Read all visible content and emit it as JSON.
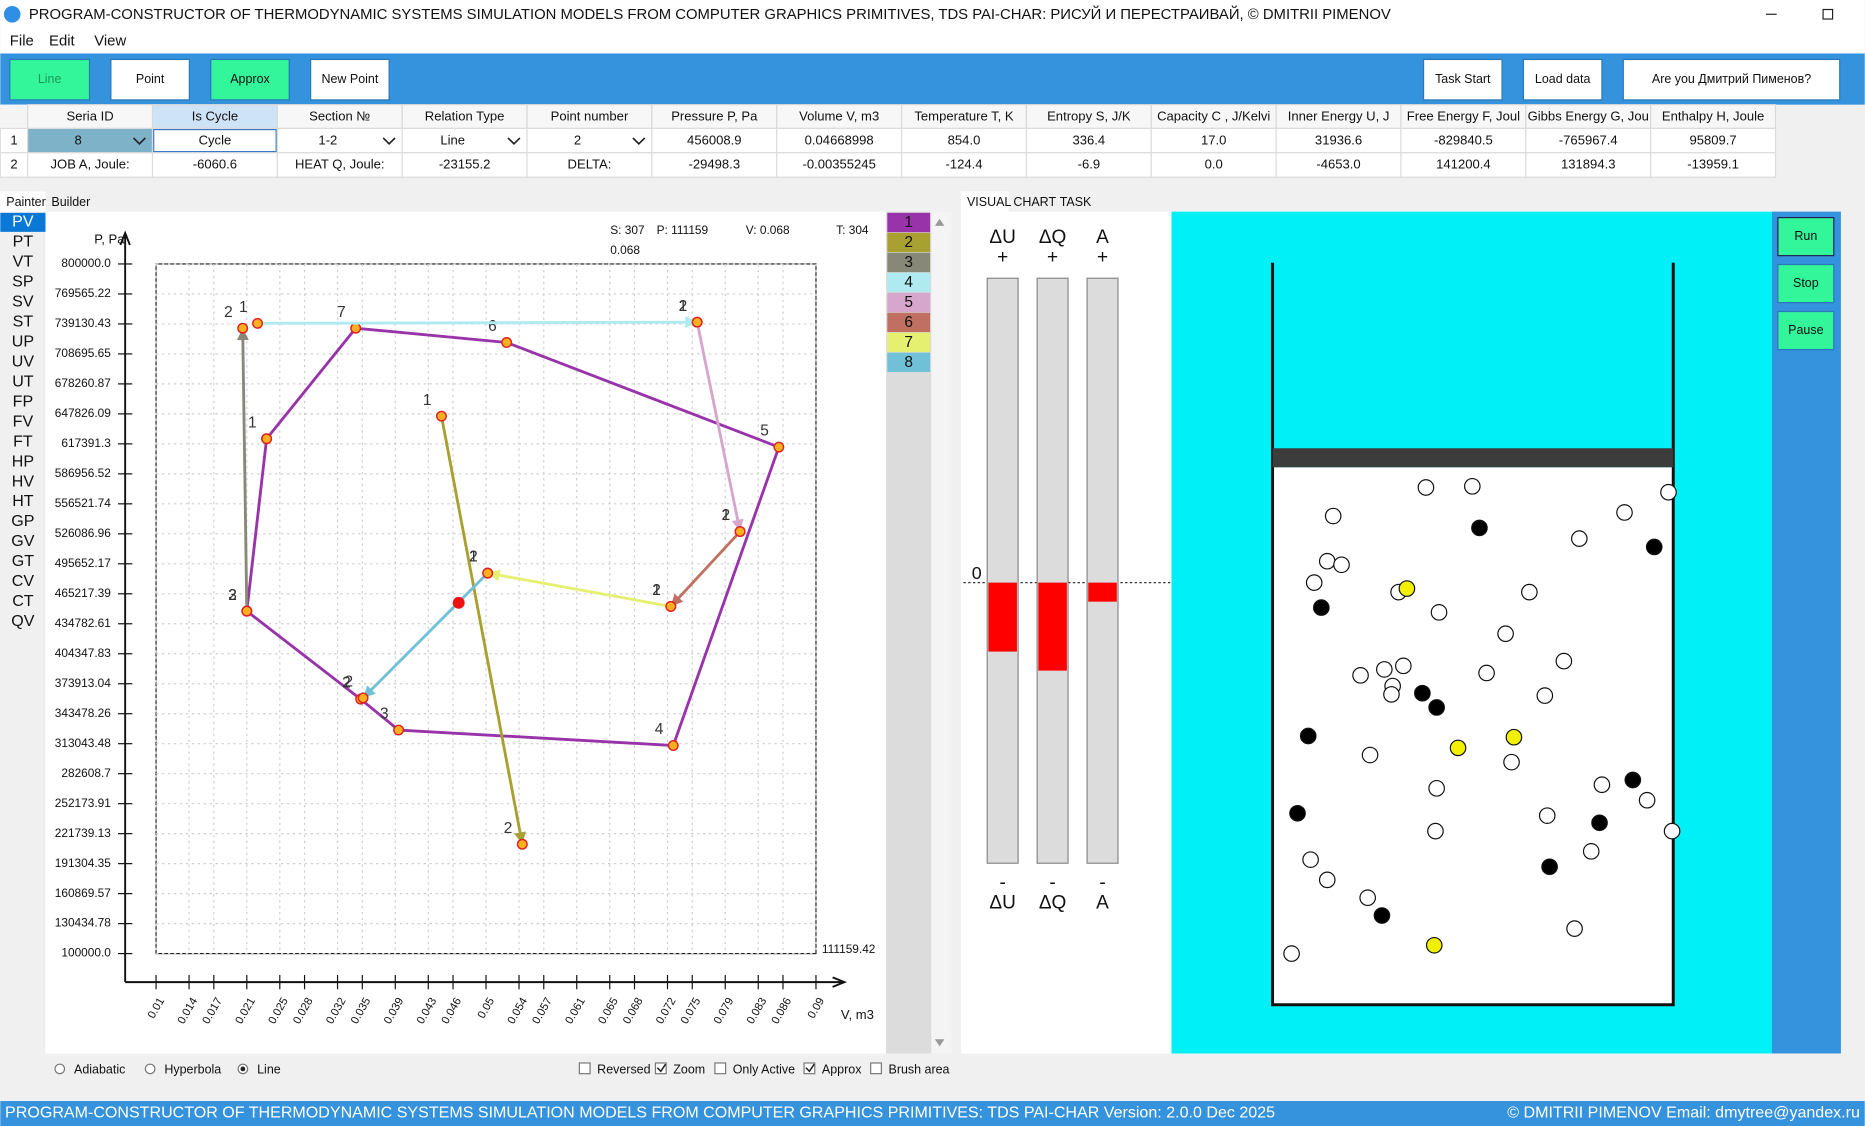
{
  "title_bar": {
    "title": "PROGRAM-CONSTRUCTOR OF THERMODYNAMIC SYSTEMS SIMULATION MODELS FROM COMPUTER GRAPHICS PRIMITIVES, TDS PAI-CHAR: РИСУЙ И ПЕРЕСТРАИВАЙ, © DMITRII PIMENOV"
  },
  "menu": [
    "File",
    "Edit",
    "View"
  ],
  "toolbar": {
    "left": [
      "Line",
      "Point",
      "Approx",
      "New Point"
    ],
    "right": [
      "Task Start",
      "Load data",
      "Are you Дмитрий Пименов?"
    ]
  },
  "table": {
    "headers": [
      "Seria ID",
      "Is Cycle",
      "Section №",
      "Relation Type",
      "Point number",
      "Pressure P, Pa",
      "Volume V, m3",
      "Temperature T, K",
      "Entropy S, J/K",
      "Capacity C , J/Kelvi",
      "Inner Energy U, J",
      "Free Energy F, Joul",
      "Gibbs Energy G, Jou",
      "Enthalpy H, Joule"
    ],
    "rows": [
      [
        "1",
        "8",
        "Cycle",
        "1-2",
        "Line",
        "2",
        "456008.9",
        "0.04668998",
        "854.0",
        "336.4",
        "17.0",
        "31936.6",
        "-829840.5",
        "-765967.4",
        "95809.7"
      ],
      [
        "2",
        "JOB A, Joule:",
        "-6060.6",
        "HEAT Q, Joule:",
        "-23155.2",
        "DELTA:",
        "-29498.3",
        "-0.00355245",
        "-124.4",
        "-6.9",
        "0.0",
        "-4653.0",
        "141200.4",
        "131894.3",
        "-13959.1"
      ]
    ]
  },
  "tabs": [
    "Painter",
    "Builder"
  ],
  "diagrams": [
    "PV",
    "PT",
    "VT",
    "SP",
    "SV",
    "ST",
    "UP",
    "UV",
    "UT",
    "FP",
    "FV",
    "FT",
    "HP",
    "HV",
    "HT",
    "GP",
    "GV",
    "GT",
    "CV",
    "CT",
    "QV"
  ],
  "status": {
    "s": "S: 307",
    "p": "P: 111159",
    "v": "V: 0.068",
    "t": "T: 304",
    "cursor": "0.068"
  },
  "chart_data": {
    "type": "line",
    "y_label": "P, Pa",
    "x_label": "V, m3",
    "corner_label": "111159.42",
    "xlim": [
      0.01,
      0.09
    ],
    "ylim": [
      100000,
      800000
    ],
    "grid": true,
    "xticks": [
      0.01,
      0.014,
      0.017,
      0.021,
      0.025,
      0.028,
      0.032,
      0.035,
      0.039,
      0.043,
      0.046,
      0.05,
      0.054,
      0.057,
      0.061,
      0.065,
      0.068,
      0.072,
      0.075,
      0.079,
      0.083,
      0.086,
      0.09
    ],
    "yticks": [
      {
        "value": 800000,
        "label": "800000.0"
      },
      769565.22,
      739130.43,
      708695.65,
      678260.87,
      647826.09,
      617391.3,
      586956.52,
      556521.74,
      526086.96,
      495652.17,
      465217.39,
      434782.61,
      404347.83,
      373913.04,
      343478.26,
      313043.48,
      282608.7,
      252173.91,
      221739.13,
      191304.35,
      160869.57,
      130434.78,
      {
        "value": 100000,
        "label": "100000.0"
      }
    ],
    "series": [
      {
        "name": "1",
        "color": "#9933aa",
        "x": [
          0.0234,
          0.0342,
          0.0525,
          0.0855,
          0.0727,
          0.0394,
          0.0348,
          0.021,
          0.0234
        ],
        "values": [
          622600,
          734800,
          720300,
          614100,
          311200,
          326900,
          358300,
          447600,
          622600
        ],
        "point_labels": [
          "1",
          "7",
          "6",
          "5",
          "4",
          "3",
          "2",
          "3",
          null
        ]
      },
      {
        "name": "2",
        "color": "#a8a030",
        "x": [
          0.0446,
          0.0544
        ],
        "values": [
          645500,
          211000
        ],
        "point_labels": [
          "1",
          "2"
        ]
      },
      {
        "name": "3",
        "color": "#888878",
        "x": [
          0.021,
          0.0205
        ],
        "values": [
          447600,
          734800
        ],
        "point_labels": [
          "2",
          "2"
        ]
      },
      {
        "name": "4",
        "color": "#aeeaf0",
        "x": [
          0.0223,
          0.0756
        ],
        "values": [
          739700,
          740900
        ],
        "point_labels": [
          "1",
          "1"
        ]
      },
      {
        "name": "5",
        "color": "#d6a6cc",
        "x": [
          0.0756,
          0.0808
        ],
        "values": [
          740900,
          528400
        ],
        "point_labels": [
          "2",
          "1"
        ]
      },
      {
        "name": "6",
        "color": "#c07060",
        "x": [
          0.0808,
          0.0724
        ],
        "values": [
          528400,
          452400
        ],
        "point_labels": [
          "2",
          "1"
        ]
      },
      {
        "name": "7",
        "color": "#e6f070",
        "x": [
          0.0724,
          0.0502
        ],
        "values": [
          452400,
          486200
        ],
        "point_labels": [
          "2",
          "1"
        ]
      },
      {
        "name": "8",
        "color": "#70c0d8",
        "x": [
          0.0502,
          0.0351
        ],
        "values": [
          486200,
          359500
        ],
        "point_labels": [
          "2",
          "2"
        ]
      }
    ]
  },
  "options": {
    "radios": [
      {
        "label": "Adiabatic",
        "checked": false
      },
      {
        "label": "Hyperbola",
        "checked": false
      },
      {
        "label": "Line",
        "checked": true
      }
    ],
    "checkboxes": [
      {
        "label": "Reversed",
        "checked": false
      },
      {
        "label": "Zoom",
        "checked": true
      },
      {
        "label": "Only Active",
        "checked": false
      },
      {
        "label": "Approx",
        "checked": true
      },
      {
        "label": "Brush area",
        "checked": false
      }
    ]
  },
  "view_tabs": [
    "VISUAL",
    "CHART",
    "TASK"
  ],
  "energy": {
    "zero": "0",
    "bars": [
      {
        "name": "ΔU",
        "plus": "+",
        "minus": "-"
      },
      {
        "name": "ΔQ",
        "plus": "+",
        "minus": "-"
      },
      {
        "name": "A",
        "plus": "+",
        "minus": "-"
      }
    ]
  },
  "controls": [
    "Run",
    "Stop",
    "Pause"
  ],
  "footer": {
    "left": "PROGRAM-CONSTRUCTOR OF THERMODYNAMIC SYSTEMS SIMULATION MODELS FROM COMPUTER GRAPHICS PRIMITIVES: TDS PAI-CHAR Version: 2.0.0 Dec 2025",
    "right": "© DMITRII PIMENOV Email: dmytree@yandex.ru"
  }
}
